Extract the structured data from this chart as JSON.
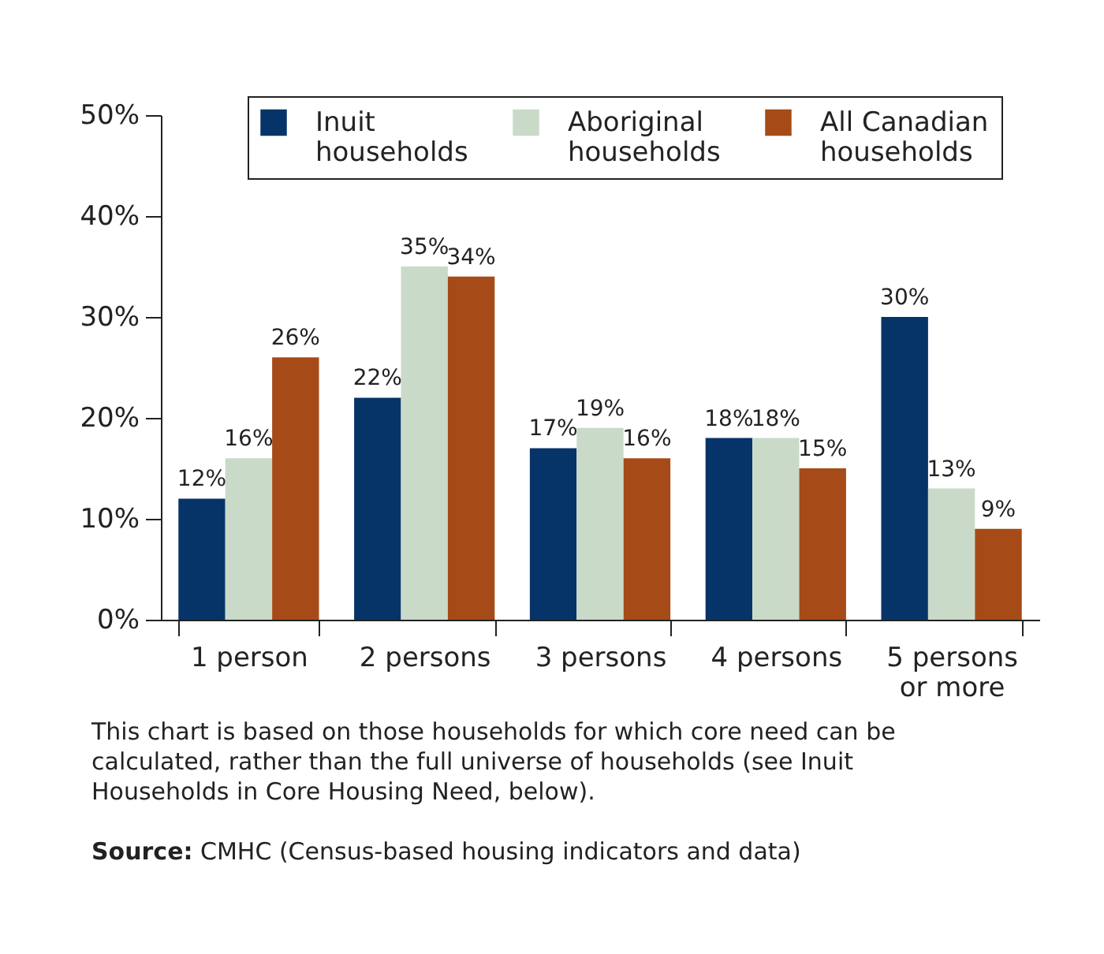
{
  "chart_data": {
    "type": "bar",
    "categories": [
      "1 person",
      "2 persons",
      "3 persons",
      "4 persons",
      "5 persons or more"
    ],
    "series": [
      {
        "name": "Inuit households",
        "color": "#063468",
        "values": [
          12,
          22,
          17,
          18,
          30
        ],
        "value_labels": [
          "12%",
          "22%",
          "17%",
          "18%",
          "30%"
        ]
      },
      {
        "name": "Aboriginal households",
        "color": "#c9dac9",
        "values": [
          16,
          35,
          19,
          18,
          13
        ],
        "value_labels": [
          "16%",
          "35%",
          "19%",
          "18%",
          "13%"
        ]
      },
      {
        "name": "All Canadian households",
        "color": "#a64b17",
        "values": [
          26,
          34,
          16,
          15,
          9
        ],
        "value_labels": [
          "26%",
          "34%",
          "16%",
          "15%",
          "9%"
        ]
      }
    ],
    "ylim": [
      0,
      50
    ],
    "yticks": [
      {
        "value": 0,
        "label": "0%"
      },
      {
        "value": 10,
        "label": "10%"
      },
      {
        "value": 20,
        "label": "20%"
      },
      {
        "value": 30,
        "label": "30%"
      },
      {
        "value": 40,
        "label": "40%"
      },
      {
        "value": 50,
        "label": "50%"
      }
    ],
    "legend": "top",
    "annotations": [
      "This chart is based on those households for which core need can be calculated,  rather than the full universe of households (see Inuit Households in Core Housing Need, below).",
      "Source: CMHC (Census-based housing indicators and data)"
    ]
  }
}
